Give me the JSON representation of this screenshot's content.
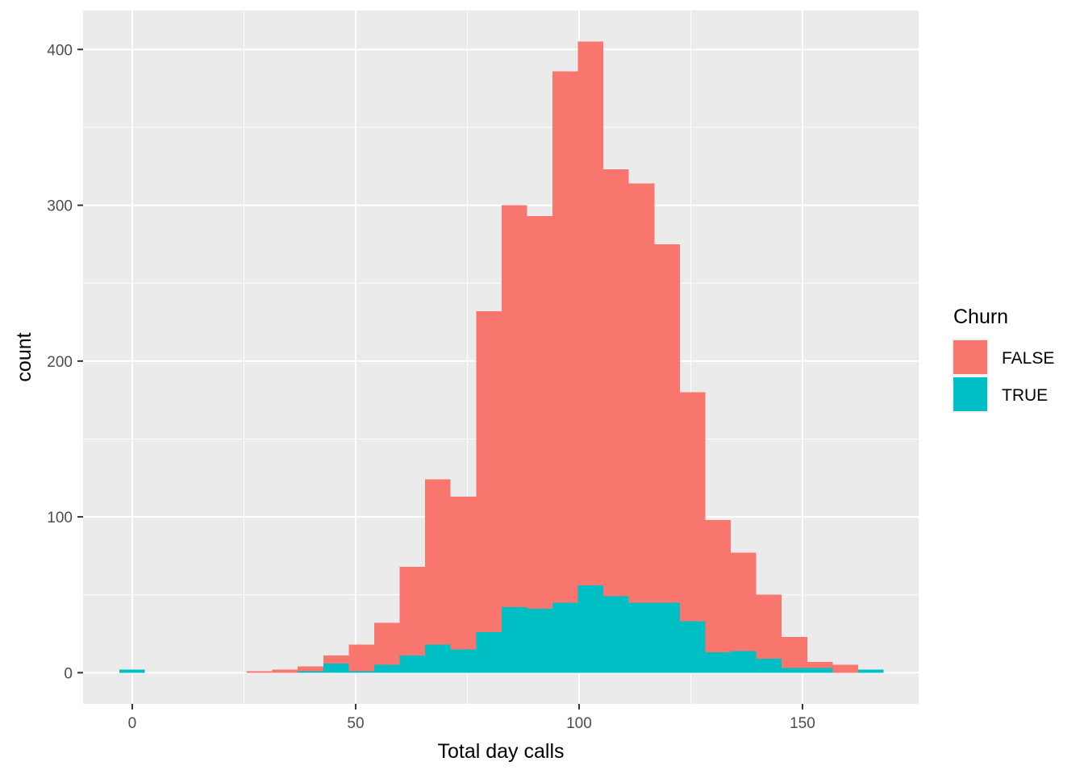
{
  "chart_data": {
    "type": "bar",
    "subtype": "stacked-histogram",
    "xlabel": "Total day calls",
    "ylabel": "count",
    "xlim": [
      -11,
      176
    ],
    "ylim": [
      -20,
      425
    ],
    "bin_width": 5.7,
    "grid": true,
    "x_ticks": [
      0,
      50,
      100,
      150
    ],
    "y_ticks": [
      0,
      100,
      200,
      300,
      400
    ],
    "legend": {
      "title": "Churn",
      "position": "right",
      "entries": [
        {
          "label": "FALSE",
          "color": "#F8766D"
        },
        {
          "label": "TRUE",
          "color": "#00BFC4"
        }
      ]
    },
    "bin_centers": [
      0,
      28.5,
      34.2,
      39.9,
      45.6,
      51.3,
      57.0,
      62.7,
      68.4,
      74.1,
      79.8,
      85.5,
      91.2,
      96.9,
      102.6,
      108.3,
      114.0,
      119.7,
      125.4,
      131.1,
      136.8,
      142.5,
      148.2,
      153.9,
      159.6,
      165.3
    ],
    "series": [
      {
        "name": "FALSE",
        "color": "#F8766D",
        "values": [
          0,
          1,
          2,
          3,
          5,
          17,
          27,
          57,
          106,
          98,
          206,
          258,
          252,
          341,
          349,
          274,
          269,
          230,
          147,
          85,
          63,
          41,
          20,
          4,
          5,
          0
        ]
      },
      {
        "name": "TRUE",
        "color": "#00BFC4",
        "values": [
          2,
          0,
          0,
          1,
          6,
          1,
          5,
          11,
          18,
          15,
          26,
          42,
          41,
          45,
          56,
          49,
          45,
          45,
          33,
          13,
          14,
          9,
          3,
          3,
          0,
          2
        ]
      }
    ]
  }
}
